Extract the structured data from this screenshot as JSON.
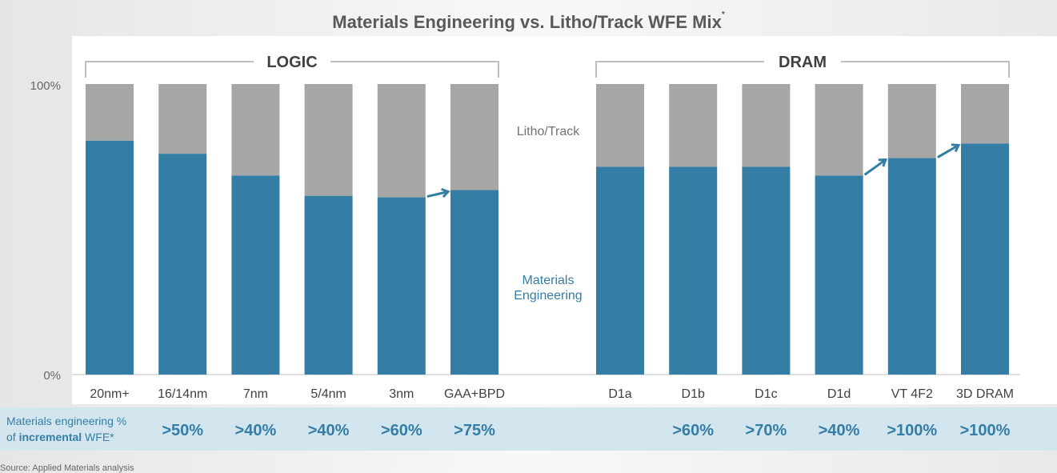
{
  "chart_data": {
    "type": "bar",
    "stacked": true,
    "title": "Materials Engineering vs. Litho/Track WFE Mix",
    "title_mark": "*",
    "ylim": [
      0,
      100
    ],
    "yticks": [
      "0%",
      "100%"
    ],
    "groups": [
      {
        "name": "LOGIC",
        "categories": [
          "20nm+",
          "16/14nm",
          "7nm",
          "5/4nm",
          "3nm",
          "GAA+BPD"
        ]
      },
      {
        "name": "DRAM",
        "categories": [
          "D1a",
          "D1b",
          "D1c",
          "D1d",
          "VT 4F2",
          "3D DRAM"
        ]
      }
    ],
    "series": [
      {
        "name": "Materials Engineering",
        "color": "#347ea5",
        "values": [
          [
            80.5,
            76,
            68.5,
            61.5,
            61,
            63.5
          ],
          [
            71.5,
            71.5,
            71.5,
            68.5,
            74.5,
            79.5
          ]
        ]
      },
      {
        "name": "Litho/Track",
        "color": "#a6a6a6",
        "values": [
          [
            19.5,
            24,
            31.5,
            38.5,
            39,
            36.5
          ],
          [
            28.5,
            28.5,
            28.5,
            31.5,
            25.5,
            20.5
          ]
        ]
      }
    ],
    "series_labels": {
      "litho": "Litho/Track",
      "materials_line1": "Materials",
      "materials_line2": "Engineering"
    },
    "arrows": [
      [
        0,
        4,
        5
      ],
      [
        1,
        3,
        4
      ],
      [
        1,
        4,
        5
      ]
    ]
  },
  "table": {
    "label_line1": "Materials engineering %",
    "label_of": "of ",
    "label_bold": "incremental",
    "label_end": " WFE*",
    "values": [
      [
        ">50%",
        ">40%",
        ">40%",
        ">60%",
        ">75%"
      ],
      [
        "",
        ">60%",
        ">70%",
        ">40%",
        ">100%",
        ">100%"
      ]
    ]
  },
  "source": "Source: Applied Materials analysis"
}
